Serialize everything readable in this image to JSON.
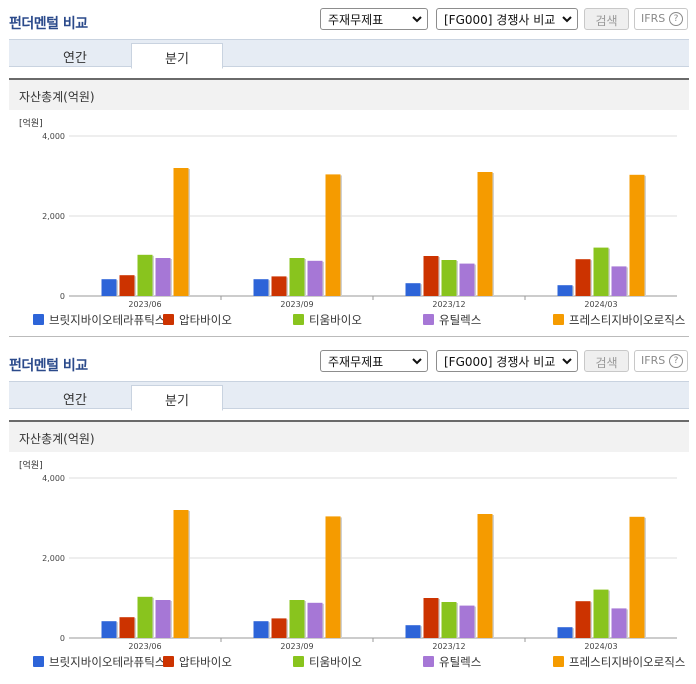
{
  "panel_title": "펀더멘털 비교",
  "select_statement": "주재무제표",
  "select_compare": "[FG000] 경쟁사 비교",
  "search_label": "검색",
  "ifrs_label": "IFRS",
  "ifrs_help": "?",
  "tabs": [
    "연간",
    "분기"
  ],
  "section_title": "자산총계(억원)",
  "colors": {
    "series": [
      "#2d64d8",
      "#cc3300",
      "#89c41e",
      "#a677d6",
      "#f59b00"
    ],
    "title": "#2b4a8b",
    "grid": "#dddddd"
  },
  "chart_data": [
    {
      "type": "bar",
      "unit_label": "[억원]",
      "categories": [
        "2023/06",
        "2023/09",
        "2023/12",
        "2024/03"
      ],
      "yticks": [
        "4,000",
        "2,000",
        "0"
      ],
      "ylim": [
        0,
        4000
      ],
      "grid": true,
      "legend_position": "bottom",
      "series": [
        {
          "name": "브릿지바이오테라퓨틱스",
          "values": [
            420,
            420,
            320,
            270
          ]
        },
        {
          "name": "압타바이오",
          "values": [
            520,
            490,
            1000,
            920
          ]
        },
        {
          "name": "티움바이오",
          "values": [
            1030,
            950,
            900,
            1210
          ]
        },
        {
          "name": "유틸렉스",
          "values": [
            950,
            880,
            810,
            740
          ]
        },
        {
          "name": "프레스티지바이오로직스",
          "values": [
            3200,
            3040,
            3100,
            3030
          ]
        }
      ]
    },
    {
      "type": "bar",
      "unit_label": "[억원]",
      "categories": [
        "2023/06",
        "2023/09",
        "2023/12",
        "2024/03"
      ],
      "yticks": [
        "4,000",
        "2,000",
        "0"
      ],
      "ylim": [
        0,
        4000
      ],
      "grid": true,
      "legend_position": "bottom",
      "series": [
        {
          "name": "브릿지바이오테라퓨틱스",
          "values": [
            420,
            420,
            320,
            270
          ]
        },
        {
          "name": "압타바이오",
          "values": [
            520,
            490,
            1000,
            920
          ]
        },
        {
          "name": "티움바이오",
          "values": [
            1030,
            950,
            900,
            1210
          ]
        },
        {
          "name": "유틸렉스",
          "values": [
            950,
            880,
            810,
            740
          ]
        },
        {
          "name": "프레스티지바이오로직스",
          "values": [
            3200,
            3040,
            3100,
            3030
          ]
        }
      ]
    }
  ]
}
